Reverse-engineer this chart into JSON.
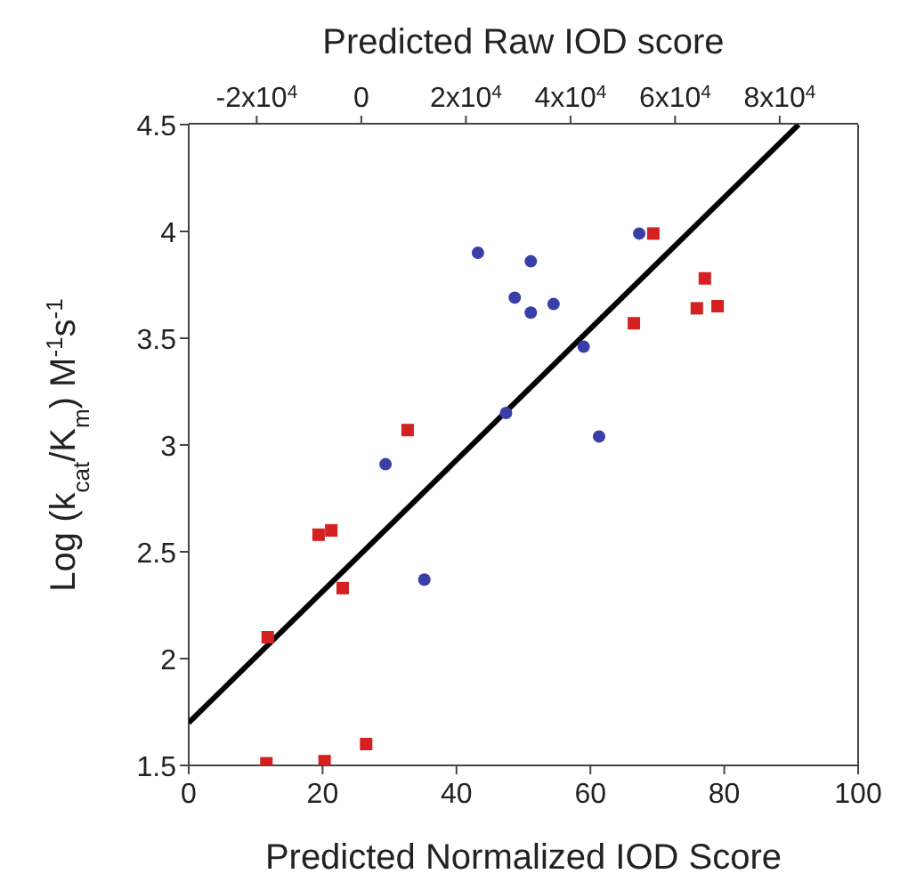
{
  "chart_data": {
    "type": "scatter",
    "xlabel": "Predicted Normalized IOD Score",
    "x2label": "Predicted Raw IOD score",
    "ylabel": "Log (k$_{cat}$/K$_{m}$) M$^{-1}$s$^{-1}$",
    "xlim": [
      0,
      100
    ],
    "xticks": [
      0,
      20,
      40,
      60,
      80,
      100
    ],
    "x2lim": [
      -33000,
      95000
    ],
    "x2ticks": [
      {
        "value": -20000,
        "label": "-2x10$^{4}$"
      },
      0,
      {
        "value": 20000,
        "label": "2x10$^{4}$"
      },
      {
        "value": 40000,
        "label": "4x10$^{4}$"
      },
      {
        "value": 60000,
        "label": "6x10$^{4}$"
      },
      {
        "value": 80000,
        "label": "8x10$^{4}$"
      }
    ],
    "ylim": [
      1.5,
      4.5
    ],
    "yticks": [
      1.5,
      2,
      2.5,
      3,
      3.5,
      4,
      4.5
    ],
    "grid": false,
    "series": [
      {
        "marker": "circle",
        "color": "#3a3fa8",
        "x": [
          43.2,
          51.1,
          48.7,
          54.5,
          51.1,
          67.3,
          59.0,
          47.4,
          61.3,
          29.4,
          35.2
        ],
        "values": [
          3.9,
          3.86,
          3.69,
          3.66,
          3.62,
          3.99,
          3.46,
          3.15,
          3.04,
          2.91,
          2.37
        ]
      },
      {
        "marker": "square",
        "color": "#d42020",
        "x": [
          69.4,
          77.1,
          75.9,
          79.0,
          66.5,
          32.7,
          19.4,
          21.3,
          23.0,
          11.8,
          11.6,
          20.3,
          26.5
        ],
        "values": [
          3.99,
          3.78,
          3.64,
          3.65,
          3.57,
          3.07,
          2.58,
          2.6,
          2.33,
          2.1,
          1.51,
          1.52,
          1.6
        ]
      },
      {
        "type": "line",
        "marker": "none",
        "color": "#000000",
        "x": [
          0,
          91.1
        ],
        "values": [
          1.7,
          4.5
        ]
      }
    ]
  }
}
